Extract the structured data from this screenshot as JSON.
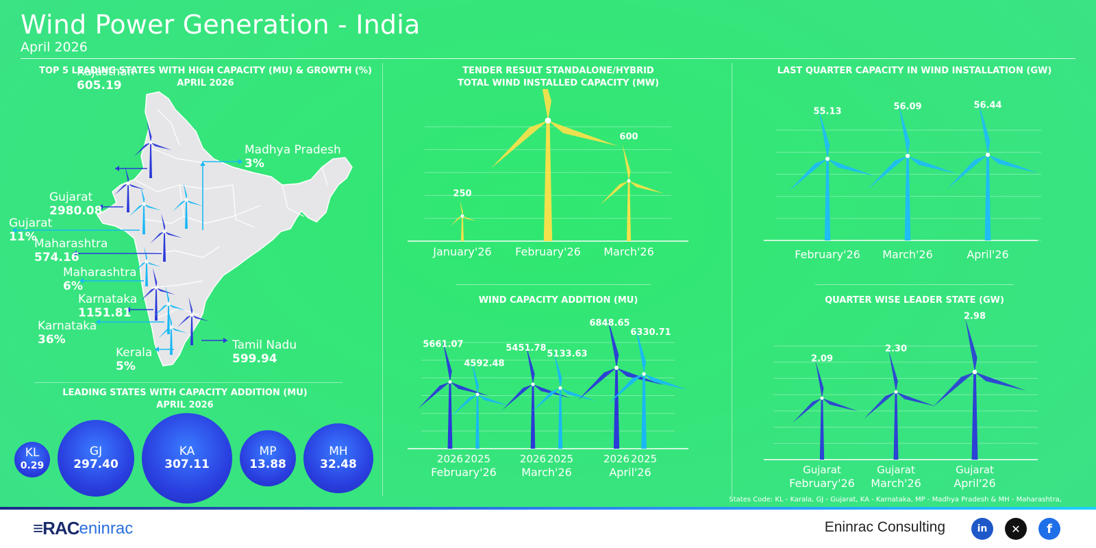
{
  "header": {
    "title": "Wind Power Generation - India",
    "subtitle": "April 2026"
  },
  "left": {
    "title1": "TOP 5 LEADING STATES WITH HIGH CAPACITY (MU) & GROWTH (%)",
    "title2": "APRIL 2026",
    "annotations": [
      {
        "name": "Rajasthan",
        "value": "605.19"
      },
      {
        "name": "Madhya Pradesh",
        "value": "3%"
      },
      {
        "name": "Gujarat",
        "value": "2980.08"
      },
      {
        "name": "Gujarat",
        "value": "11%"
      },
      {
        "name": "Maharashtra",
        "value": "574.16"
      },
      {
        "name": "Maharashtra",
        "value": "6%"
      },
      {
        "name": "Karnataka",
        "value": "1151.81"
      },
      {
        "name": "Karnataka",
        "value": "36%"
      },
      {
        "name": "Kerala",
        "value": "5%"
      },
      {
        "name": "Tamil Nadu",
        "value": "599.94"
      }
    ],
    "bubbles_title1": "LEADING STATES WITH CAPACITY ADDITION (MU)",
    "bubbles_title2": "APRIL 2026",
    "bubbles": [
      {
        "code": "KL",
        "value": "0.29"
      },
      {
        "code": "GJ",
        "value": "297.40"
      },
      {
        "code": "KA",
        "value": "307.11"
      },
      {
        "code": "MP",
        "value": "13.88"
      },
      {
        "code": "MH",
        "value": "32.48"
      }
    ]
  },
  "chart_data": [
    {
      "type": "bar",
      "title": "TENDER RESULT STANDALONE/HYBRID TOTAL WIND INSTALLED CAPACITY (MW)",
      "categories": [
        "January'26",
        "February'26",
        "March'26"
      ],
      "values": [
        250,
        1200,
        600
      ],
      "color": "#f3e14c"
    },
    {
      "type": "bar",
      "title": "WIND CAPACITY ADDITION (MU)",
      "categories": [
        "February'26",
        "March'26",
        "April'26"
      ],
      "series": [
        {
          "name": "2026",
          "values": [
            5661.07,
            5451.78,
            6848.65
          ],
          "color": "#2b3ad8"
        },
        {
          "name": "2025",
          "values": [
            4592.48,
            5133.63,
            6330.71
          ],
          "color": "#19b8f5"
        }
      ]
    },
    {
      "type": "bar",
      "title": "LAST QUARTER CAPACITY IN WIND INSTALLATION (GW)",
      "categories": [
        "February'26",
        "March'26",
        "April'26"
      ],
      "values": [
        55.13,
        56.09,
        56.44
      ],
      "color": "#1fbdf3"
    },
    {
      "type": "bar",
      "title": "QUARTER WISE LEADER STATE (GW)",
      "categories": [
        "February'26",
        "March'26",
        "April'26"
      ],
      "states": [
        "Gujarat",
        "Gujarat",
        "Gujarat"
      ],
      "values": [
        2.09,
        2.3,
        2.98
      ],
      "color": "#2c42d4"
    }
  ],
  "footer": {
    "note": "States Code: KL - Karala, GJ - Gujarat, KA - Karnataka, MP - Madhya Pradesh & MH - Maharashtra,",
    "company": "Eninrac Consulting",
    "logo_text": "RAC eninrac"
  }
}
